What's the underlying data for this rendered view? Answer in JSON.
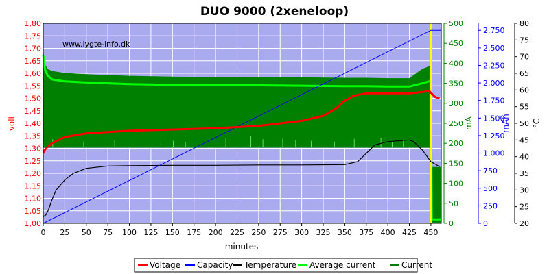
{
  "chart_data": {
    "type": "line",
    "title": "DUO 9000 (2xeneloop)",
    "watermark": "www.lygte-info.dk",
    "xlabel": "minutes",
    "xlim": [
      0,
      462
    ],
    "xticks": [
      "0",
      "25",
      "50",
      "75",
      "100",
      "125",
      "150",
      "175",
      "200",
      "225",
      "250",
      "275",
      "300",
      "325",
      "350",
      "375",
      "400",
      "425",
      "450"
    ],
    "axes": {
      "volt": {
        "label": "volt",
        "color": "#ff0000",
        "ylim": [
          1.0,
          1.8
        ],
        "ticks": [
          "1,00",
          "1,05",
          "1,10",
          "1,15",
          "1,20",
          "1,25",
          "1,30",
          "1,35",
          "1,40",
          "1,45",
          "1,50",
          "1,55",
          "1,60",
          "1,65",
          "1,70",
          "1,75",
          "1,80"
        ]
      },
      "mA": {
        "label": "mA",
        "color": "#008000",
        "ylim": [
          0,
          500
        ],
        "ticks": [
          "0",
          "50",
          "100",
          "150",
          "200",
          "250",
          "300",
          "350",
          "400",
          "450",
          "500"
        ]
      },
      "mAh": {
        "label": "mAh",
        "color": "#0000ff",
        "ylim": [
          0,
          2850
        ],
        "ticks": [
          "0",
          "250",
          "500",
          "750",
          "1.000",
          "1.250",
          "1.500",
          "1.750",
          "2.000",
          "2.250",
          "2.500",
          "2.750"
        ]
      },
      "temp": {
        "label": "°C",
        "color": "#000000",
        "ylim": [
          20,
          80
        ],
        "ticks": [
          "20",
          "25",
          "30",
          "35",
          "40",
          "45",
          "50",
          "55",
          "60",
          "65",
          "70",
          "75",
          "80"
        ]
      }
    },
    "legend": {
      "placement": "bottom",
      "items": [
        {
          "name": "Voltage",
          "color": "#ff0000"
        },
        {
          "name": "Capacity",
          "color": "#0000ff"
        },
        {
          "name": "Temperature",
          "color": "#000000"
        },
        {
          "name": "Average current",
          "color": "#00ff00"
        },
        {
          "name": "Current",
          "color": "#008000"
        }
      ]
    },
    "charge_end_marker": {
      "x": 450,
      "color": "#ffff00"
    },
    "series": [
      {
        "name": "Voltage",
        "axis": "volt",
        "color": "#ff0000",
        "x": [
          0,
          3,
          10,
          25,
          50,
          75,
          100,
          150,
          200,
          250,
          300,
          325,
          340,
          350,
          360,
          375,
          400,
          425,
          440,
          448,
          452,
          455,
          460
        ],
        "y": [
          1.28,
          1.3,
          1.32,
          1.345,
          1.36,
          1.365,
          1.37,
          1.375,
          1.38,
          1.39,
          1.41,
          1.43,
          1.46,
          1.49,
          1.51,
          1.52,
          1.52,
          1.52,
          1.525,
          1.53,
          1.515,
          1.505,
          1.5
        ]
      },
      {
        "name": "Capacity",
        "axis": "mAh",
        "color": "#0000ff",
        "x": [
          0,
          450,
          462
        ],
        "y": [
          0,
          2750,
          2750
        ]
      },
      {
        "name": "Temperature",
        "axis": "temp",
        "color": "#000000",
        "x": [
          0,
          3,
          6,
          10,
          15,
          25,
          35,
          50,
          75,
          100,
          150,
          200,
          250,
          300,
          350,
          365,
          375,
          385,
          400,
          425,
          430,
          440,
          450,
          460
        ],
        "y": [
          22,
          22.5,
          24,
          27,
          30,
          33,
          35,
          36.5,
          37.2,
          37.3,
          37.4,
          37.4,
          37.5,
          37.5,
          37.6,
          38.5,
          41,
          43.5,
          44.5,
          45,
          44.5,
          42,
          38.5,
          37
        ]
      },
      {
        "name": "Average current",
        "axis": "mA",
        "color": "#00ff00",
        "x": [
          0,
          2,
          5,
          10,
          25,
          50,
          100,
          150,
          200,
          250,
          300,
          350,
          375,
          400,
          425,
          440,
          448,
          450,
          451,
          462
        ],
        "y": [
          420,
          385,
          370,
          360,
          355,
          352,
          348,
          346,
          345,
          345,
          344,
          343,
          343,
          342,
          342,
          350,
          355,
          355,
          10,
          10
        ]
      },
      {
        "name": "Current",
        "axis": "mA",
        "color": "#008000",
        "band_low": 190,
        "x": [
          0,
          2,
          5,
          10,
          25,
          50,
          100,
          150,
          200,
          250,
          300,
          350,
          375,
          400,
          425,
          440,
          448,
          450,
          451,
          462
        ],
        "y": [
          425,
          395,
          385,
          380,
          375,
          372,
          368,
          366,
          365,
          365,
          364,
          363,
          363,
          362,
          362,
          385,
          392,
          392,
          140,
          140
        ]
      }
    ]
  }
}
